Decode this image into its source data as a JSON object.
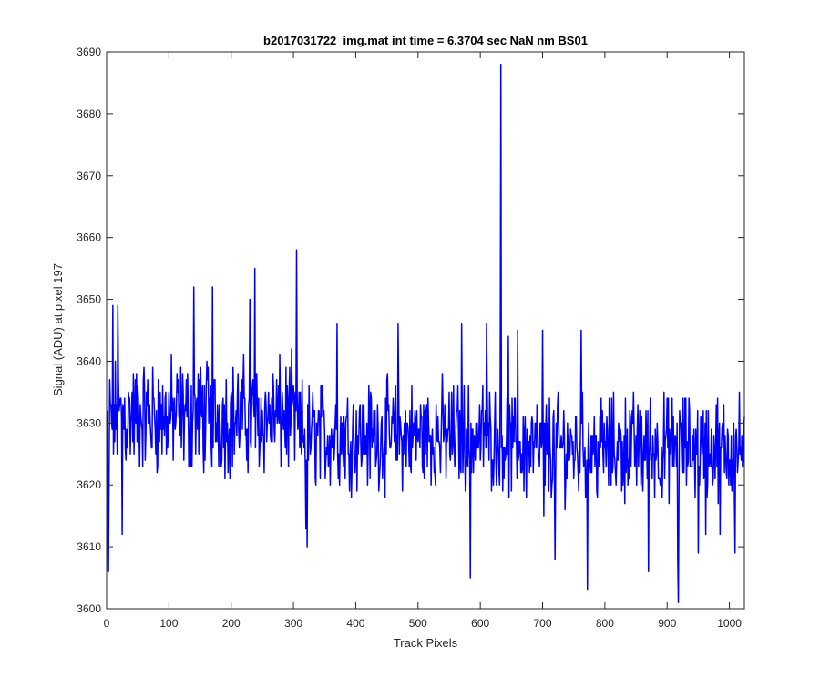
{
  "chart_data": {
    "type": "line",
    "title": "b2017031722_img.mat int time = 6.3704 sec  NaN nm BS01",
    "xlabel": "Track Pixels",
    "ylabel": "Signal (ADU) at pixel 197",
    "xlim": [
      0,
      1024
    ],
    "ylim": [
      3600,
      3690
    ],
    "xticks": [
      0,
      100,
      200,
      300,
      400,
      500,
      600,
      700,
      800,
      900,
      1000
    ],
    "yticks": [
      3600,
      3610,
      3620,
      3630,
      3640,
      3650,
      3660,
      3670,
      3680,
      3690
    ],
    "grid": false,
    "legend": "none",
    "series_color": "#0000ff",
    "n_points": 1024,
    "series": [
      {
        "x_start": 1,
        "x_step": 1,
        "values": [
          3626,
          3606,
          3606,
          3641,
          3632,
          3649,
          3630,
          3624,
          3649,
          3623,
          3640,
          3633,
          3646,
          3628,
          3612,
          3634,
          3626,
          3629,
          3631,
          3635,
          3644,
          3628,
          3624,
          3651,
          3632,
          3637,
          3631,
          3629,
          3633,
          3635,
          3630,
          3628,
          3634,
          3641,
          3632,
          3627,
          3640,
          3633,
          3638,
          3630,
          3645,
          3629,
          3633,
          3630,
          3627,
          3628,
          3636,
          3625,
          3633,
          3631,
          3647,
          3633,
          3630,
          3626,
          3627,
          3637,
          3631,
          3634,
          3627,
          3629,
          3638,
          3632,
          3639,
          3636,
          3629,
          3620,
          3639,
          3625,
          3636,
          3635,
          3630,
          3626,
          3642,
          3631,
          3636,
          3638,
          3630,
          3622,
          3634,
          3633,
          3627,
          3630,
          3630,
          3629,
          3645,
          3632,
          3640,
          3628,
          3633,
          3626,
          3630,
          3631,
          3629,
          3637,
          3643,
          3627,
          3630,
          3634,
          3629,
          3632,
          3635,
          3626,
          3626,
          3640,
          3630,
          3629,
          3633,
          3630,
          3634,
          3627,
          3631,
          3628,
          3643,
          3624,
          3629,
          3633,
          3645,
          3630,
          3633,
          3621,
          3635,
          3637,
          3627,
          3630,
          3632,
          3635,
          3632,
          3626,
          3637,
          3630,
          3625,
          3638,
          3632,
          3630,
          3631,
          3633,
          3641,
          3622,
          3638,
          3631,
          3631,
          3630,
          3631,
          3635,
          3640,
          3627,
          3632,
          3625,
          3640,
          3638,
          3633,
          3630,
          3627,
          3632,
          3630,
          3635,
          3633,
          3638,
          3634,
          3632,
          3640,
          3622,
          3639,
          3627,
          3633,
          3633,
          3644,
          3622,
          3638,
          3627,
          3628,
          3633,
          3636,
          3630,
          3621,
          3631,
          3636,
          3632,
          3635,
          3631,
          3632,
          3628,
          3634,
          3631,
          3627,
          3626,
          3624,
          3639,
          3629,
          3633,
          3633,
          3631,
          3644,
          3630,
          3637,
          3630,
          3632,
          3624,
          3622,
          3636,
          3636,
          3626,
          3630,
          3631,
          3633,
          3624,
          3634,
          3633,
          3621,
          3635,
          3620,
          3633,
          3629,
          3621,
          3632,
          3633,
          3626,
          3629,
          3631,
          3633,
          3624,
          3636,
          3632,
          3632,
          3630,
          3627,
          3628,
          3630,
          3638,
          3625,
          3633,
          3637,
          3630,
          3624,
          3633,
          3635,
          3635,
          3629,
          3627,
          3629,
          3639,
          3631,
          3637,
          3626,
          3634,
          3631,
          3630,
          3629,
          3633,
          3630,
          3632,
          3628,
          3624,
          3632,
          3629,
          3635,
          3627,
          3629,
          3631,
          3638,
          3633,
          3628,
          3626,
          3634,
          3633,
          3630,
          3630,
          3628,
          3639,
          3631,
          3632,
          3632,
          3629,
          3624,
          3637,
          3633,
          3630,
          3626,
          3630,
          3631,
          3634,
          3629,
          3632,
          3627,
          3629,
          3640,
          3638,
          3628,
          3631,
          3631,
          3628,
          3630,
          3640,
          3632,
          3624,
          3632,
          3629,
          3633,
          3633,
          3627,
          3632,
          3630,
          3631,
          3630,
          3630,
          3631,
          3628,
          3636,
          3628,
          3629,
          3624,
          3628,
          3632,
          3637,
          3620,
          3636,
          3629,
          3623,
          3629,
          3622,
          3628,
          3632,
          3637,
          3630,
          3626,
          3631,
          3632,
          3632,
          3640,
          3631,
          3621,
          3634,
          3627,
          3627,
          3631,
          3624,
          3625,
          3636,
          3633,
          3630,
          3625,
          3634,
          3631,
          3626,
          3624,
          3629,
          3629,
          3635,
          3634,
          3632,
          3628,
          3630,
          3624,
          3633,
          3637,
          3627,
          3630,
          3624,
          3627,
          3633,
          3629,
          3628,
          3629,
          3626,
          3625,
          3635,
          3628,
          3626,
          3628,
          3628,
          3633,
          3630,
          3628,
          3624,
          3631,
          3627,
          3629,
          3628,
          3627,
          3625,
          3629,
          3631,
          3630,
          3624,
          3628,
          3630,
          3631,
          3623,
          3631,
          3630,
          3627,
          3625,
          3627,
          3630,
          3626,
          3631,
          3629,
          3628,
          3628,
          3630,
          3625,
          3629,
          3630,
          3633,
          3624,
          3633,
          3625,
          3631,
          3629,
          3628,
          3626,
          3628,
          3633,
          3622,
          3630,
          3621,
          3628,
          3631,
          3628,
          3630,
          3627,
          3625,
          3625,
          3631,
          3626,
          3624,
          3630,
          3630,
          3631,
          3630,
          3632,
          3627,
          3632,
          3631,
          3625,
          3629,
          3633,
          3634,
          3626,
          3631,
          3623,
          3630,
          3626,
          3627,
          3632,
          3629,
          3625,
          3630,
          3629,
          3627,
          3625,
          3631,
          3621,
          3630,
          3625,
          3626,
          3630,
          3632,
          3627,
          3626,
          3628,
          3626,
          3630,
          3630,
          3624,
          3629,
          3631,
          3624,
          3627,
          3627,
          3630,
          3628,
          3631,
          3624,
          3628,
          3626,
          3634,
          3628,
          3629,
          3629,
          3624,
          3630,
          3623,
          3630,
          3626,
          3627,
          3630,
          3632,
          3628,
          3625,
          3628,
          3631,
          3626,
          3624,
          3626,
          3628,
          3630,
          3624,
          3627,
          3629,
          3629,
          3632,
          3625,
          3627,
          3630,
          3629,
          3622,
          3629,
          3626,
          3625,
          3632,
          3628,
          3627,
          3630,
          3624,
          3628,
          3629,
          3628,
          3632,
          3627,
          3625,
          3627,
          3628,
          3626,
          3630,
          3630,
          3623,
          3629,
          3628,
          3625,
          3631,
          3627,
          3622,
          3628,
          3630,
          3626,
          3627,
          3629,
          3625,
          3630,
          3627,
          3624,
          3627,
          3629,
          3627,
          3625,
          3628,
          3631,
          3625,
          3628,
          3627,
          3626,
          3624,
          3629,
          3630,
          3628,
          3626,
          3627,
          3625,
          3628,
          3632,
          3623,
          3629,
          3627,
          3626,
          3628,
          3626,
          3624,
          3630,
          3631,
          3625,
          3629,
          3625,
          3626,
          3628,
          3627,
          3627,
          3630,
          3623,
          3628,
          3625,
          3627,
          3629,
          3626,
          3622,
          3629,
          3627,
          3626,
          3631,
          3625,
          3626,
          3630,
          3627,
          3628,
          3624,
          3625,
          3626,
          3629,
          3630,
          3628,
          3627,
          3626,
          3625,
          3629,
          3627,
          3627,
          3627,
          3630,
          3627,
          3688,
          3660,
          3632,
          3623,
          3629,
          3621,
          3627,
          3625,
          3630,
          3629,
          3625,
          3628,
          3626,
          3627,
          3629,
          3624,
          3630,
          3626,
          3627,
          3628,
          3627,
          3624,
          3629,
          3626,
          3627,
          3628,
          3625,
          3627,
          3628,
          3626,
          3627,
          3625,
          3629,
          3624,
          3627,
          3627,
          3628,
          3627,
          3623,
          3629,
          3625,
          3625,
          3627,
          3626,
          3627,
          3628,
          3622,
          3628,
          3627,
          3629,
          3626,
          3623,
          3631,
          3625,
          3627,
          3630,
          3624,
          3629,
          3630,
          3630,
          3625,
          3623,
          3633,
          3619,
          3632,
          3622,
          3633,
          3628,
          3627,
          3626,
          3626,
          3630,
          3627,
          3625,
          3627,
          3625,
          3626,
          3626,
          3625,
          3626,
          3627,
          3628,
          3626,
          3624,
          3627,
          3628,
          3626,
          3625,
          3627,
          3626,
          3625,
          3627,
          3627,
          3626,
          3628,
          3623,
          3631,
          3624,
          3626,
          3626,
          3627,
          3626,
          3630,
          3623,
          3628,
          3624,
          3626,
          3629,
          3623,
          3627,
          3627,
          3625,
          3626,
          3628,
          3626,
          3622,
          3628,
          3627,
          3627,
          3622,
          3630,
          3625,
          3627,
          3624,
          3628,
          3626,
          3625,
          3624,
          3631,
          3625,
          3626,
          3628,
          3626,
          3623,
          3627,
          3627,
          3626,
          3624,
          3628,
          3626,
          3625,
          3627,
          3625,
          3628,
          3625,
          3628,
          3626,
          3625,
          3626,
          3625,
          3624,
          3627,
          3626,
          3628,
          3625,
          3626,
          3624,
          3628,
          3626,
          3625,
          3627,
          3627,
          3624,
          3626,
          3627,
          3625,
          3626,
          3624,
          3627,
          3629,
          3625,
          3625,
          3627,
          3626,
          3625,
          3626,
          3627,
          3626,
          3625,
          3625,
          3628,
          3626,
          3624,
          3627,
          3627,
          3625,
          3626,
          3625,
          3626,
          3627,
          3625,
          3625,
          3626,
          3628,
          3626,
          3624,
          3626,
          3627,
          3625,
          3626,
          3626,
          3627,
          3625,
          3625,
          3627,
          3624,
          3626,
          3627,
          3625,
          3625,
          3626,
          3627,
          3626,
          3625,
          3625,
          3626,
          3627,
          3625,
          3626,
          3627,
          3625,
          3626,
          3625,
          3626,
          3625,
          3627,
          3625,
          3626,
          3626,
          3625,
          3627,
          3626,
          3625,
          3624,
          3627,
          3626,
          3626,
          3625,
          3627,
          3626,
          3625,
          3626,
          3625,
          3626,
          3627,
          3625,
          3626,
          3626,
          3625,
          3626,
          3627,
          3625,
          3626,
          3626,
          3625,
          3627,
          3624,
          3626,
          3626,
          3625,
          3627,
          3626,
          3625,
          3626,
          3626,
          3625,
          3627,
          3626,
          3625,
          3626,
          3625,
          3626,
          3627,
          3625,
          3626,
          3626,
          3625,
          3626,
          3627,
          3625,
          3626,
          3625,
          3626,
          3627,
          3626,
          3625,
          3626,
          3626,
          3625,
          3627,
          3626,
          3625,
          3626,
          3626,
          3625,
          3626,
          3627,
          3625,
          3626,
          3626,
          3625,
          3626,
          3627,
          3625,
          3626,
          3626,
          3625,
          3626,
          3627,
          3625,
          3626,
          3626,
          3625,
          3627,
          3626,
          3625,
          3626,
          3626,
          3625,
          3626,
          3627,
          3625,
          3626,
          3626,
          3625,
          3626,
          3627,
          3625,
          3626,
          3626,
          3625,
          3626,
          3627,
          3625,
          3626,
          3626,
          3625,
          3626,
          3627,
          3625,
          3626,
          3626,
          3625,
          3627,
          3626,
          3625,
          3626,
          3626,
          3625,
          3626,
          3627,
          3625,
          3626,
          3626,
          3625,
          3626,
          3627,
          3625,
          3626,
          3626,
          3625,
          3626,
          3627,
          3625,
          3626,
          3626,
          3625,
          3626,
          3627,
          3625,
          3626,
          3626,
          3625,
          3627,
          3626,
          3625,
          3626,
          3626,
          3625,
          3626,
          3627,
          3625,
          3626,
          3626,
          3625,
          3626,
          3627,
          3625,
          3626,
          3626,
          3625,
          3626,
          3627,
          3625,
          3626,
          3626,
          3625,
          3626,
          3627,
          3625,
          3626,
          3626,
          3625,
          3627,
          3626,
          3625,
          3626,
          3626
        ]
      }
    ],
    "overrides": [
      [
        772,
        3603
      ],
      [
        773,
        3626
      ],
      [
        815,
        3625
      ],
      [
        836,
        3629
      ],
      [
        918,
        3601
      ],
      [
        917,
        3608
      ],
      [
        584,
        3605
      ],
      [
        633,
        3688
      ],
      [
        305,
        3658
      ],
      [
        238,
        3655
      ],
      [
        320,
        3613
      ],
      [
        322,
        3610
      ],
      [
        25,
        3612
      ],
      [
        18,
        3649
      ],
      [
        10,
        3649
      ],
      [
        140,
        3652
      ],
      [
        170,
        3652
      ],
      [
        230,
        3650
      ],
      [
        645,
        3644
      ],
      [
        700,
        3645
      ],
      [
        762,
        3645
      ],
      [
        468,
        3646
      ],
      [
        370,
        3646
      ],
      [
        610,
        3646
      ],
      [
        660,
        3645
      ],
      [
        570,
        3646
      ],
      [
        1009,
        3609
      ],
      [
        985,
        3612
      ],
      [
        702,
        3615
      ],
      [
        720,
        3608
      ],
      [
        870,
        3606
      ],
      [
        897,
        3627
      ],
      [
        926,
        3622
      ],
      [
        950,
        3609
      ],
      [
        962,
        3612
      ]
    ]
  }
}
